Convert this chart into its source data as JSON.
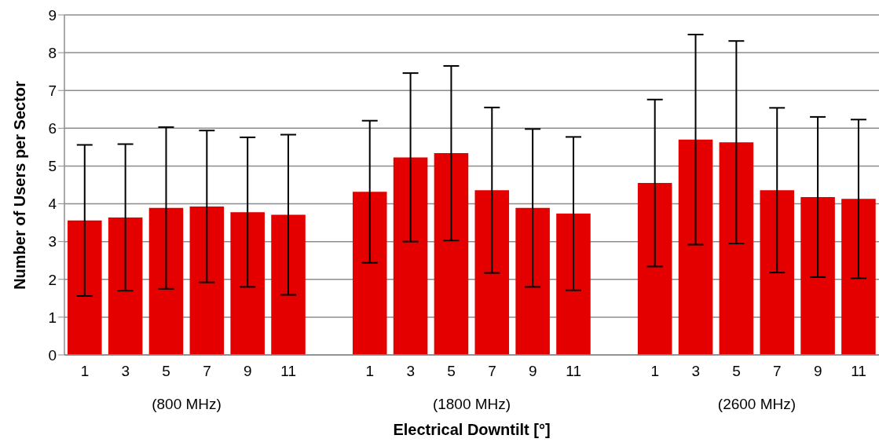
{
  "chart_data": {
    "type": "bar",
    "xlabel": "Electrical Downtilt [°]",
    "ylabel": "Number of Users per Sector",
    "categories": [
      "1",
      "3",
      "5",
      "7",
      "9",
      "11",
      null,
      "1",
      "3",
      "5",
      "7",
      "9",
      "11",
      null,
      "1",
      "3",
      "5",
      "7",
      "9",
      "11"
    ],
    "values": [
      3.56,
      3.64,
      3.89,
      3.93,
      3.78,
      3.71,
      null,
      4.32,
      5.23,
      5.34,
      4.36,
      3.89,
      3.74,
      null,
      4.55,
      5.7,
      5.63,
      4.36,
      4.18,
      4.13
    ],
    "errors": [
      2.0,
      1.94,
      2.14,
      2.01,
      1.98,
      2.12,
      null,
      1.88,
      2.23,
      2.31,
      2.19,
      2.09,
      2.03,
      null,
      2.21,
      2.78,
      2.68,
      2.18,
      2.12,
      2.1
    ],
    "color": "#e50000",
    "ylim": [
      0,
      9
    ],
    "yticks": [
      0,
      1,
      2,
      3,
      4,
      5,
      6,
      7,
      8,
      9
    ],
    "grid": "y",
    "legend": false,
    "annotations": [
      "(800 MHz)",
      "(1800 MHz)",
      "(2600 MHz)"
    ]
  }
}
